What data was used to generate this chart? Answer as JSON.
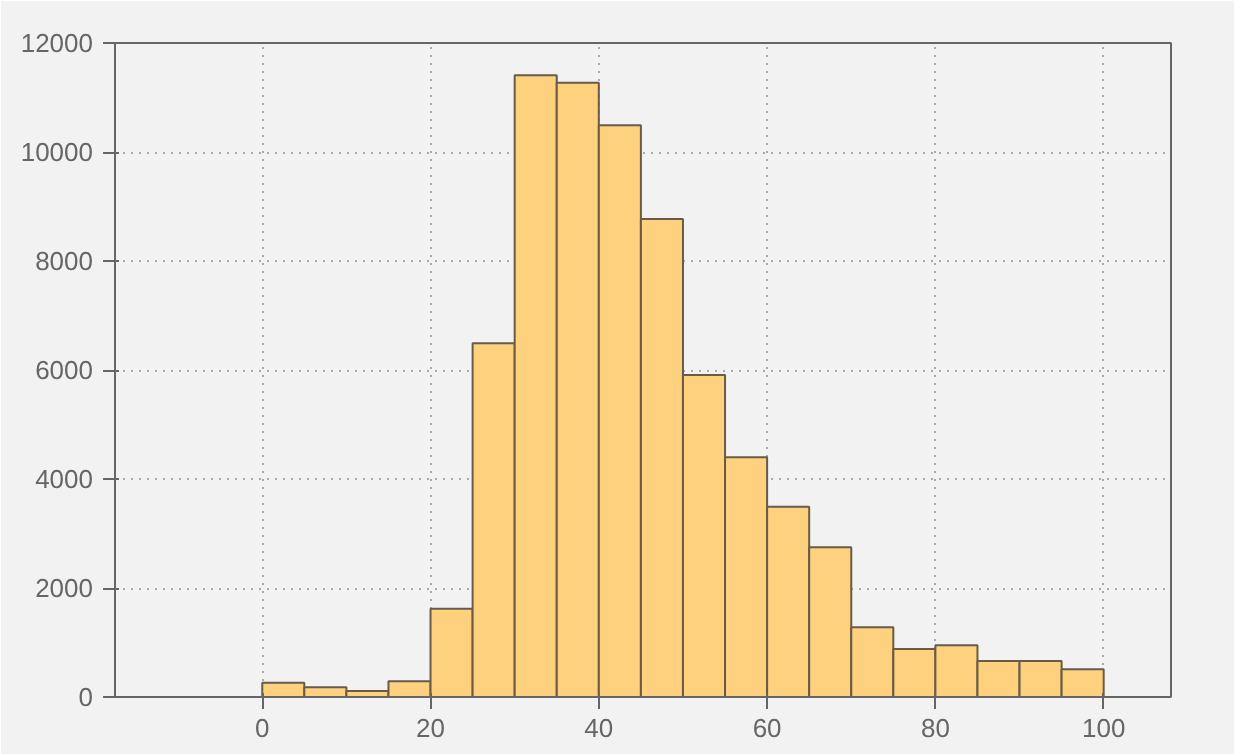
{
  "chart_data": {
    "type": "histogram",
    "bins": [
      0,
      5,
      10,
      15,
      20,
      25,
      30,
      35,
      40,
      45,
      50,
      55,
      60,
      65,
      70,
      75,
      80,
      85,
      90,
      95,
      100
    ],
    "values": [
      260,
      180,
      110,
      290,
      1620,
      6490,
      11410,
      11270,
      10490,
      8770,
      5910,
      4400,
      3490,
      2750,
      1280,
      880,
      950,
      660,
      660,
      510
    ],
    "color": "#fdd17e",
    "xlim": [
      -17.5,
      108
    ],
    "xticks": [
      0,
      20,
      40,
      60,
      80,
      100
    ],
    "ylim": [
      0,
      12000
    ],
    "yticks": [
      0,
      2000,
      4000,
      6000,
      8000,
      10000,
      12000
    ],
    "grid": true
  }
}
